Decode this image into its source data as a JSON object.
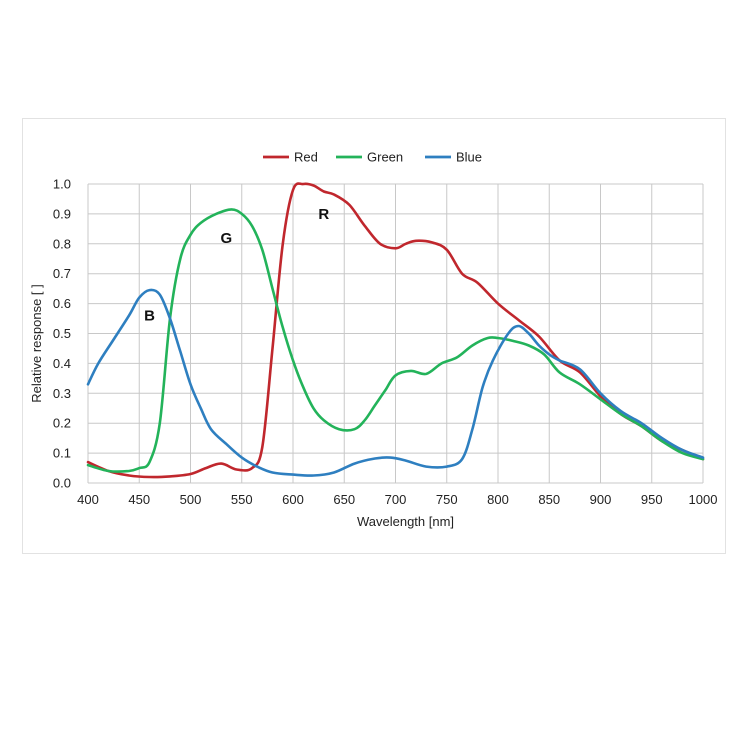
{
  "chart_data": {
    "type": "line",
    "title": "",
    "xlabel": "Wavelength [nm]",
    "ylabel": "Relative response [ ]",
    "xlim": [
      400,
      1000
    ],
    "ylim": [
      0,
      1.0
    ],
    "x_ticks": [
      400,
      450,
      500,
      550,
      600,
      650,
      700,
      750,
      800,
      850,
      900,
      950,
      1000
    ],
    "x_tick_labels": [
      "400",
      "450",
      "500",
      "550",
      "600",
      "650",
      "700",
      "750",
      "800",
      "850",
      "900",
      "950",
      "1000"
    ],
    "y_ticks": [
      0,
      0.1,
      0.2,
      0.3,
      0.4,
      0.5,
      0.6,
      0.7,
      0.8,
      0.9,
      1.0
    ],
    "y_tick_labels": [
      "0.0",
      "0.1",
      "0.2",
      "0.3",
      "0.4",
      "0.5",
      "0.6",
      "0.7",
      "0.8",
      "0.9",
      "1.0"
    ],
    "grid": true,
    "legend_position": "top-center",
    "series": [
      {
        "name": "Red",
        "color": "#c0272d",
        "x": [
          400,
          420,
          440,
          460,
          480,
          500,
          515,
          530,
          545,
          560,
          570,
          580,
          590,
          600,
          610,
          620,
          630,
          640,
          655,
          670,
          685,
          700,
          710,
          720,
          735,
          750,
          765,
          780,
          800,
          820,
          840,
          860,
          880,
          900,
          920,
          940,
          960,
          980,
          1000
        ],
        "y": [
          0.07,
          0.04,
          0.025,
          0.02,
          0.022,
          0.03,
          0.05,
          0.065,
          0.045,
          0.05,
          0.12,
          0.45,
          0.8,
          0.98,
          1.0,
          0.995,
          0.975,
          0.965,
          0.93,
          0.86,
          0.8,
          0.785,
          0.8,
          0.81,
          0.805,
          0.78,
          0.7,
          0.67,
          0.6,
          0.545,
          0.49,
          0.41,
          0.37,
          0.29,
          0.23,
          0.19,
          0.14,
          0.11,
          0.08
        ]
      },
      {
        "name": "Green",
        "color": "#23b35a",
        "x": [
          400,
          420,
          440,
          450,
          460,
          470,
          480,
          490,
          500,
          510,
          525,
          540,
          550,
          560,
          570,
          580,
          590,
          600,
          610,
          620,
          630,
          645,
          660,
          670,
          680,
          690,
          700,
          715,
          730,
          745,
          760,
          775,
          790,
          800,
          815,
          830,
          845,
          860,
          880,
          900,
          920,
          940,
          960,
          980,
          1000
        ],
        "y": [
          0.06,
          0.04,
          0.04,
          0.05,
          0.07,
          0.2,
          0.55,
          0.75,
          0.83,
          0.87,
          0.9,
          0.915,
          0.9,
          0.86,
          0.78,
          0.65,
          0.52,
          0.41,
          0.32,
          0.25,
          0.21,
          0.18,
          0.18,
          0.21,
          0.26,
          0.31,
          0.36,
          0.375,
          0.365,
          0.4,
          0.42,
          0.46,
          0.485,
          0.485,
          0.475,
          0.46,
          0.43,
          0.37,
          0.33,
          0.28,
          0.23,
          0.19,
          0.14,
          0.1,
          0.08
        ]
      },
      {
        "name": "Blue",
        "color": "#2e7fc0",
        "x": [
          400,
          410,
          425,
          440,
          450,
          460,
          470,
          480,
          490,
          500,
          510,
          520,
          535,
          550,
          565,
          580,
          600,
          620,
          640,
          660,
          680,
          695,
          710,
          730,
          750,
          765,
          775,
          785,
          795,
          810,
          820,
          830,
          840,
          850,
          860,
          880,
          900,
          920,
          940,
          960,
          980,
          1000
        ],
        "y": [
          0.33,
          0.4,
          0.48,
          0.56,
          0.62,
          0.645,
          0.63,
          0.55,
          0.44,
          0.33,
          0.25,
          0.18,
          0.13,
          0.085,
          0.055,
          0.035,
          0.028,
          0.025,
          0.035,
          0.065,
          0.082,
          0.085,
          0.075,
          0.055,
          0.055,
          0.08,
          0.18,
          0.32,
          0.41,
          0.5,
          0.525,
          0.5,
          0.46,
          0.43,
          0.41,
          0.38,
          0.3,
          0.24,
          0.2,
          0.15,
          0.11,
          0.085
        ]
      }
    ],
    "annotations": [
      {
        "text": "B",
        "x": 460,
        "y": 0.56
      },
      {
        "text": "G",
        "x": 535,
        "y": 0.82
      },
      {
        "text": "R",
        "x": 630,
        "y": 0.9
      }
    ]
  }
}
